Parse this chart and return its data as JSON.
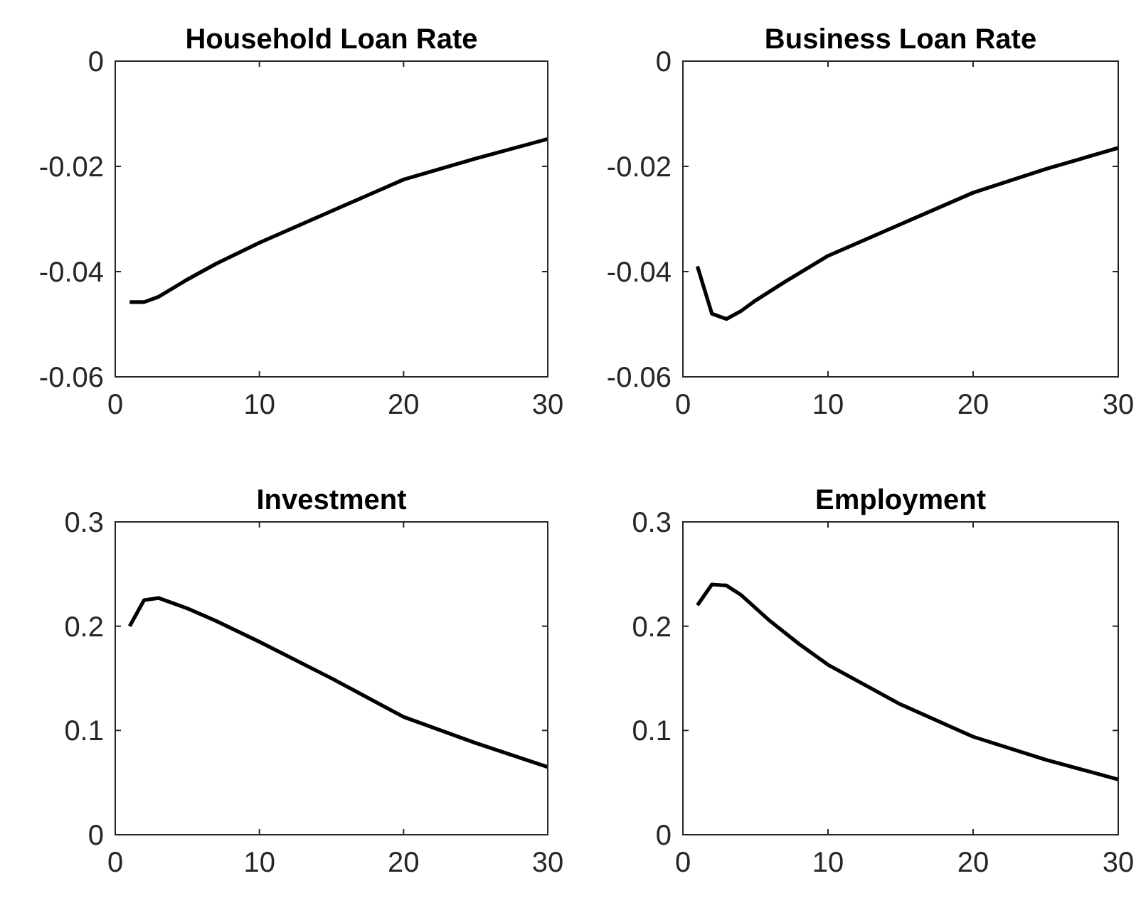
{
  "chart_data": [
    {
      "type": "line",
      "title": "Household Loan Rate",
      "x": [
        1,
        2,
        3,
        5,
        7,
        10,
        15,
        20,
        25,
        30
      ],
      "series": [
        {
          "color": "#000000",
          "values": [
            -0.0458,
            -0.0458,
            -0.0448,
            -0.0415,
            -0.0385,
            -0.0345,
            -0.0285,
            -0.0225,
            -0.0185,
            -0.0148
          ]
        }
      ],
      "xlim": [
        0,
        30
      ],
      "xticks": [
        0,
        10,
        20,
        30
      ],
      "ylim": [
        -0.06,
        0
      ],
      "yticks": [
        -0.06,
        -0.04,
        -0.02,
        0
      ],
      "grid": false,
      "marker": "none",
      "line_style": "solid"
    },
    {
      "type": "line",
      "title": "Business Loan Rate",
      "x": [
        1,
        2,
        3,
        4,
        5,
        7,
        10,
        15,
        20,
        25,
        30
      ],
      "series": [
        {
          "color": "#000000",
          "values": [
            -0.039,
            -0.048,
            -0.049,
            -0.0475,
            -0.0455,
            -0.042,
            -0.037,
            -0.031,
            -0.025,
            -0.0205,
            -0.0165
          ]
        }
      ],
      "xlim": [
        0,
        30
      ],
      "xticks": [
        0,
        10,
        20,
        30
      ],
      "ylim": [
        -0.06,
        0
      ],
      "yticks": [
        -0.06,
        -0.04,
        -0.02,
        0
      ],
      "grid": false,
      "marker": "none",
      "line_style": "solid"
    },
    {
      "type": "line",
      "title": "Investment",
      "x": [
        1,
        2,
        3,
        5,
        7,
        10,
        15,
        20,
        25,
        30
      ],
      "series": [
        {
          "color": "#000000",
          "values": [
            0.2,
            0.225,
            0.227,
            0.217,
            0.205,
            0.185,
            0.15,
            0.113,
            0.088,
            0.065
          ]
        }
      ],
      "xlim": [
        0,
        30
      ],
      "xticks": [
        0,
        10,
        20,
        30
      ],
      "ylim": [
        0,
        0.3
      ],
      "yticks": [
        0,
        0.1,
        0.2,
        0.3
      ],
      "grid": false,
      "marker": "none",
      "line_style": "solid"
    },
    {
      "type": "line",
      "title": "Employment",
      "x": [
        1,
        2,
        3,
        4,
        6,
        8,
        10,
        15,
        20,
        25,
        30
      ],
      "series": [
        {
          "color": "#000000",
          "values": [
            0.22,
            0.24,
            0.239,
            0.23,
            0.205,
            0.183,
            0.163,
            0.125,
            0.094,
            0.072,
            0.053
          ]
        }
      ],
      "xlim": [
        0,
        30
      ],
      "xticks": [
        0,
        10,
        20,
        30
      ],
      "ylim": [
        0,
        0.3
      ],
      "yticks": [
        0,
        0.1,
        0.2,
        0.3
      ],
      "grid": false,
      "marker": "none",
      "line_style": "solid"
    }
  ]
}
